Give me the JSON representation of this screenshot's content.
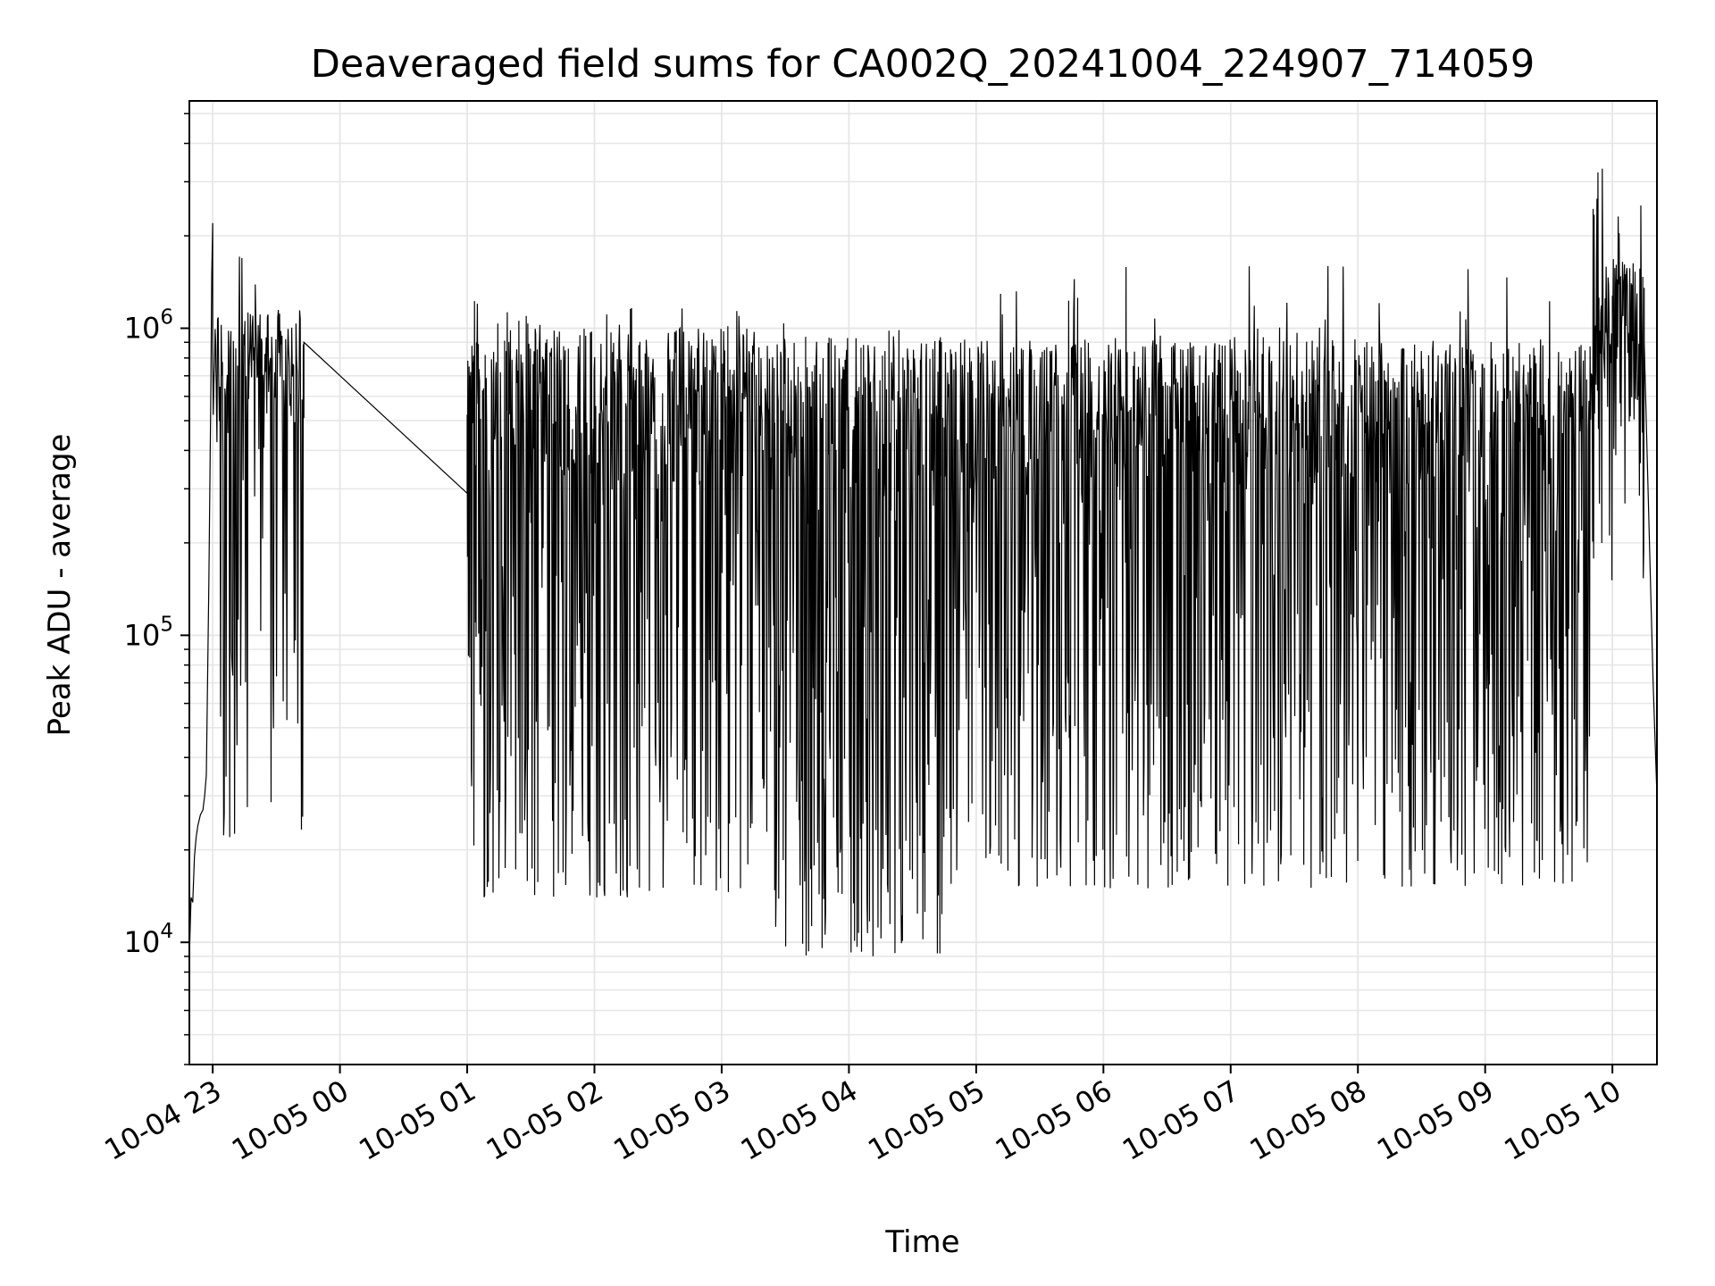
{
  "chart_data": {
    "type": "line",
    "title": "Deaveraged field sums for CA002Q_20241004_224907_714059",
    "xlabel": "Time",
    "ylabel": "Peak ADU - average",
    "y_scale": "log",
    "ylim": [
      4000,
      5500000
    ],
    "xlim": [
      "2024-10-04 22:49",
      "2024-10-05 10:21"
    ],
    "grid": true,
    "legend": "none",
    "line_color": "#000000",
    "x_ticks": [
      {
        "t": "2024-10-04 23:00",
        "label": "10-04 23"
      },
      {
        "t": "2024-10-05 00:00",
        "label": "10-05 00"
      },
      {
        "t": "2024-10-05 01:00",
        "label": "10-05 01"
      },
      {
        "t": "2024-10-05 02:00",
        "label": "10-05 02"
      },
      {
        "t": "2024-10-05 03:00",
        "label": "10-05 03"
      },
      {
        "t": "2024-10-05 04:00",
        "label": "10-05 04"
      },
      {
        "t": "2024-10-05 05:00",
        "label": "10-05 05"
      },
      {
        "t": "2024-10-05 06:00",
        "label": "10-05 06"
      },
      {
        "t": "2024-10-05 07:00",
        "label": "10-05 07"
      },
      {
        "t": "2024-10-05 08:00",
        "label": "10-05 08"
      },
      {
        "t": "2024-10-05 09:00",
        "label": "10-05 09"
      },
      {
        "t": "2024-10-05 10:00",
        "label": "10-05 10"
      }
    ],
    "y_ticks": [
      {
        "value": 10000,
        "base": "10",
        "exp": "4"
      },
      {
        "value": 100000,
        "base": "10",
        "exp": "5"
      },
      {
        "value": 1000000,
        "base": "10",
        "exp": "6"
      }
    ],
    "series": [
      {
        "segments": [
          {
            "start": "2024-10-04 22:49",
            "end": "2024-10-04 22:53",
            "pattern": "steady",
            "points": [
              [
                0,
                9000
              ],
              [
                0.2,
                14000
              ],
              [
                0.4,
                13500
              ],
              [
                0.6,
                19000
              ],
              [
                0.8,
                22000
              ],
              [
                1,
                24000
              ]
            ]
          },
          {
            "start": "2024-10-04 22:53",
            "end": "2024-10-04 22:57",
            "pattern": "steady",
            "points": [
              [
                0,
                24000
              ],
              [
                0.3,
                26000
              ],
              [
                0.6,
                27000
              ],
              [
                0.8,
                30000
              ],
              [
                1,
                35000
              ]
            ]
          },
          {
            "start": "2024-10-04 22:57",
            "end": "2024-10-04 23:00",
            "pattern": "steady",
            "points": [
              [
                0,
                35000
              ],
              [
                0.4,
                150000
              ],
              [
                0.7,
                600000
              ],
              [
                0.85,
                1500000
              ],
              [
                1,
                2200000
              ]
            ]
          },
          {
            "start": "2024-10-04 23:00",
            "end": "2024-10-04 23:43",
            "pattern": "noise",
            "high": 1150000,
            "low": 420000,
            "dip_low": 22000,
            "dip_rate": 0.35,
            "dip_bias": 0.0008,
            "spike_rate": 0.03,
            "spike_max": 1900000,
            "steps": 150
          },
          {
            "start": "2024-10-04 23:43",
            "end": "2024-10-05 01:00",
            "pattern": "steady",
            "points": [
              [
                0,
                900000
              ],
              [
                1,
                290000
              ]
            ]
          },
          {
            "start": "2024-10-05 01:00",
            "end": "2024-10-05 01:06",
            "pattern": "noise",
            "high": 900000,
            "low": 200000,
            "dip_low": 20000,
            "dip_rate": 0.4,
            "spike_rate": 0.02,
            "spike_max": 1300000,
            "steps": 40
          },
          {
            "start": "2024-10-05 01:06",
            "end": "2024-10-05 03:25",
            "pattern": "noise",
            "high": 1000000,
            "low": 280000,
            "dip_low": 14000,
            "dip_rate": 0.45,
            "spike_rate": 0.03,
            "spike_max": 1200000,
            "steps": 560
          },
          {
            "start": "2024-10-05 03:25",
            "end": "2024-10-05 04:45",
            "pattern": "noise",
            "high": 950000,
            "low": 230000,
            "dip_low": 9000,
            "dip_rate": 0.55,
            "spike_rate": 0.02,
            "spike_max": 1050000,
            "steps": 340
          },
          {
            "start": "2024-10-05 04:45",
            "end": "2024-10-05 09:50",
            "pattern": "noise",
            "high": 920000,
            "low": 260000,
            "dip_low": 15000,
            "dip_rate": 0.48,
            "spike_rate": 0.025,
            "spike_max": 1600000,
            "steps": 1150
          },
          {
            "start": "2024-10-05 09:50",
            "end": "2024-10-05 10:15",
            "pattern": "noise",
            "high": 1700000,
            "low": 400000,
            "dip_low": 150000,
            "dip_rate": 0.2,
            "spike_rate": 0.05,
            "spike_max": 4000000,
            "steps": 110
          },
          {
            "start": "2024-10-05 10:15",
            "end": "2024-10-05 10:21",
            "pattern": "steady",
            "points": [
              [
                0,
                900000
              ],
              [
                0.3,
                300000
              ],
              [
                0.7,
                70000
              ],
              [
                1,
                30000
              ]
            ]
          }
        ]
      }
    ]
  }
}
